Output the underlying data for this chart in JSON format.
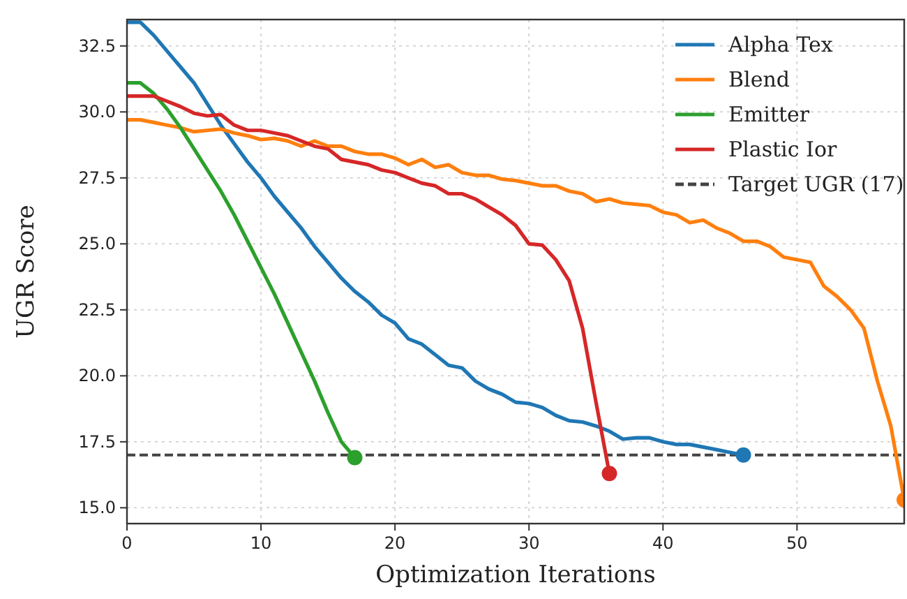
{
  "chart_data": {
    "type": "line",
    "xlabel": "Optimization Iterations",
    "ylabel": "UGR Score",
    "xlim": [
      0,
      58
    ],
    "ylim": [
      14.4,
      33.5
    ],
    "xticks": [
      0,
      10,
      20,
      30,
      40,
      50
    ],
    "yticks": [
      {
        "value": 15,
        "label": "15.0"
      },
      {
        "value": 17.5,
        "label": "17.5"
      },
      {
        "value": 20,
        "label": "20.0"
      },
      {
        "value": 22.5,
        "label": "22.5"
      },
      {
        "value": 25,
        "label": "25.0"
      },
      {
        "value": 27.5,
        "label": "27.5"
      },
      {
        "value": 30,
        "label": "30.0"
      },
      {
        "value": 32.5,
        "label": "32.5"
      }
    ],
    "grid": true,
    "legend": "top right",
    "marker": "none",
    "line_style": "solid",
    "series": [
      {
        "name": "Alpha Tex",
        "color": "#1f77b4",
        "x": [
          0,
          1,
          2,
          3,
          4,
          5,
          6,
          7,
          8,
          9,
          10,
          11,
          12,
          13,
          14,
          15,
          16,
          17,
          18,
          19,
          20,
          21,
          22,
          23,
          24,
          25,
          26,
          27,
          28,
          29,
          30,
          31,
          32,
          33,
          34,
          35,
          36,
          37,
          38,
          39,
          40,
          41,
          42,
          43,
          44,
          45,
          46
        ],
        "values": [
          33.4,
          33.4,
          32.9,
          32.3,
          31.7,
          31.1,
          30.3,
          29.5,
          28.8,
          28.1,
          27.5,
          26.8,
          26.2,
          25.6,
          24.9,
          24.3,
          23.7,
          23.2,
          22.8,
          22.3,
          22.0,
          21.4,
          21.2,
          20.8,
          20.4,
          20.3,
          19.8,
          19.5,
          19.3,
          19.0,
          18.95,
          18.8,
          18.5,
          18.3,
          18.25,
          18.1,
          17.9,
          17.6,
          17.65,
          17.65,
          17.5,
          17.4,
          17.4,
          17.3,
          17.2,
          17.1,
          17.0
        ]
      },
      {
        "name": "Blend",
        "color": "#ff7f0e",
        "x": [
          0,
          1,
          2,
          3,
          4,
          5,
          6,
          7,
          8,
          9,
          10,
          11,
          12,
          13,
          14,
          15,
          16,
          17,
          18,
          19,
          20,
          21,
          22,
          23,
          24,
          25,
          26,
          27,
          28,
          29,
          30,
          31,
          32,
          33,
          34,
          35,
          36,
          37,
          38,
          39,
          40,
          41,
          42,
          43,
          44,
          45,
          46,
          47,
          48,
          49,
          50,
          51,
          52,
          53,
          54,
          55,
          56,
          57,
          58
        ],
        "values": [
          29.7,
          29.7,
          29.6,
          29.5,
          29.4,
          29.25,
          29.3,
          29.35,
          29.2,
          29.1,
          28.95,
          29.0,
          28.9,
          28.7,
          28.9,
          28.7,
          28.7,
          28.5,
          28.4,
          28.4,
          28.25,
          28.0,
          28.2,
          27.9,
          28.0,
          27.7,
          27.6,
          27.6,
          27.45,
          27.4,
          27.3,
          27.2,
          27.2,
          27.0,
          26.9,
          26.6,
          26.7,
          26.55,
          26.5,
          26.45,
          26.2,
          26.1,
          25.8,
          25.9,
          25.6,
          25.4,
          25.1,
          25.1,
          24.9,
          24.5,
          24.4,
          24.3,
          23.4,
          23.0,
          22.5,
          21.8,
          19.8,
          18.1,
          15.3
        ]
      },
      {
        "name": "Emitter",
        "color": "#2ca02c",
        "x": [
          0,
          1,
          2,
          3,
          4,
          5,
          6,
          7,
          8,
          9,
          10,
          11,
          12,
          13,
          14,
          15,
          16,
          17
        ],
        "values": [
          31.1,
          31.1,
          30.7,
          30.1,
          29.4,
          28.6,
          27.8,
          27.0,
          26.1,
          25.1,
          24.1,
          23.1,
          22.0,
          20.9,
          19.8,
          18.6,
          17.5,
          16.9
        ]
      },
      {
        "name": "Plastic Ior",
        "color": "#d62728",
        "x": [
          0,
          1,
          2,
          3,
          4,
          5,
          6,
          7,
          8,
          9,
          10,
          11,
          12,
          13,
          14,
          15,
          16,
          17,
          18,
          19,
          20,
          21,
          22,
          23,
          24,
          25,
          26,
          27,
          28,
          29,
          30,
          31,
          32,
          33,
          34,
          35,
          36
        ],
        "values": [
          30.6,
          30.6,
          30.6,
          30.4,
          30.2,
          29.95,
          29.85,
          29.9,
          29.5,
          29.3,
          29.3,
          29.2,
          29.1,
          28.9,
          28.7,
          28.6,
          28.2,
          28.1,
          28.0,
          27.8,
          27.7,
          27.5,
          27.3,
          27.2,
          26.9,
          26.9,
          26.7,
          26.4,
          26.1,
          25.7,
          25.0,
          24.95,
          24.4,
          23.6,
          21.8,
          19.0,
          16.3
        ]
      },
      {
        "type": "scatter",
        "marker": "circle",
        "color": "#1f77b4",
        "x": [
          46
        ],
        "values": [
          17.0
        ]
      },
      {
        "type": "scatter",
        "marker": "circle",
        "color": "#ff7f0e",
        "x": [
          58
        ],
        "values": [
          15.3
        ]
      },
      {
        "type": "scatter",
        "marker": "circle",
        "color": "#2ca02c",
        "x": [
          17
        ],
        "values": [
          16.9
        ]
      },
      {
        "type": "scatter",
        "marker": "circle",
        "color": "#d62728",
        "x": [
          36
        ],
        "values": [
          16.3
        ]
      }
    ],
    "ref_lines": [
      {
        "axis": "y",
        "value": 17,
        "label": "Target UGR (17)",
        "color": "#444444",
        "line_style": "dashed"
      }
    ]
  }
}
